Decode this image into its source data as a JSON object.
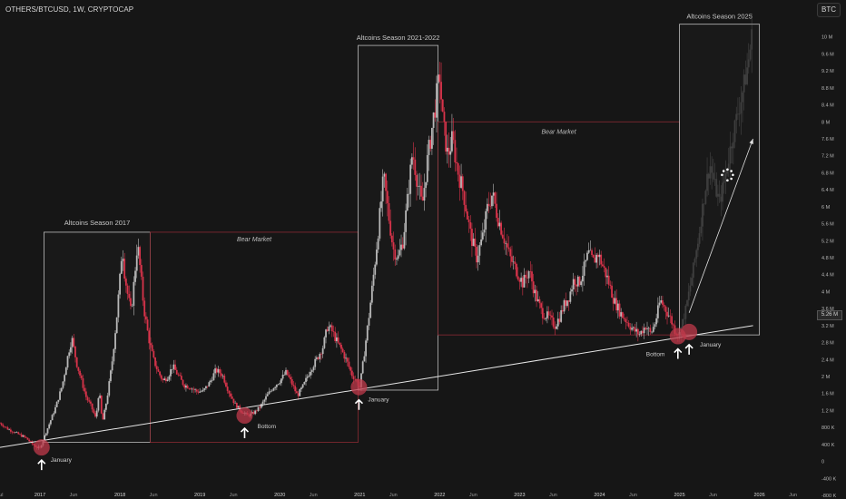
{
  "header": {
    "symbol_line": "OTHERS/BTCUSD, 1W, CRYPTOCAP"
  },
  "toolbar": {
    "currency_button": "BTC"
  },
  "price_badge": "5.26 M",
  "annotations": {
    "season_2017": "Altcoins Season 2017",
    "season_2021": "Altcoins Season 2021-2022",
    "season_2025": "Altcoins Season 2025",
    "bear_1": "Bear Market",
    "bear_2": "Bear Market",
    "label_jan_2017": "January",
    "label_bottom_2019": "Bottom",
    "label_jan_2021": "January",
    "label_bottom_2024": "Bottom",
    "label_jan_2025": "January"
  },
  "colors": {
    "background": "#161616",
    "candle_up": "#b8b8b8",
    "candle_down": "#d8334a",
    "box_white": "#bdbdbd",
    "box_red": "#8a2a33",
    "marker": "#c0394b",
    "trendline": "#e6e6e6"
  },
  "chart_data": {
    "type": "candlestick",
    "title": "OTHERS/BTCUSD, 1W, CRYPTOCAP",
    "ylim": [
      -800,
      10400
    ],
    "y_unit": "K",
    "y_tick_labels": [
      "10 M",
      "9.6 M",
      "9.2 M",
      "8.8 M",
      "8.4 M",
      "8 M",
      "7.6 M",
      "7.2 M",
      "6.8 M",
      "6.4 M",
      "6 M",
      "5.6 M",
      "5.2 M",
      "4.8 M",
      "4.4 M",
      "4 M",
      "3.6 M",
      "3.2 M",
      "2.8 M",
      "2.4 M",
      "2 M",
      "1.6 M",
      "1.2 M",
      "800 K",
      "400 K",
      "0",
      "-400 K",
      "-800 K"
    ],
    "y_tick_values": [
      10000,
      9600,
      9200,
      8800,
      8400,
      8000,
      7600,
      7200,
      6800,
      6400,
      6000,
      5600,
      5200,
      4800,
      4400,
      4000,
      3600,
      3200,
      2800,
      2400,
      2000,
      1600,
      1200,
      800,
      400,
      0,
      -400,
      -800
    ],
    "x_tick_labels": [
      "Jul",
      "2017",
      "Jun",
      "2018",
      "Jun",
      "2019",
      "Jun",
      "2020",
      "Jun",
      "2021",
      "Jun",
      "2022",
      "Jun",
      "2023",
      "Jun",
      "2024",
      "Jun",
      "2025",
      "Jun",
      "2026",
      "Jun"
    ],
    "x_tick_dates": [
      2016.5,
      2017.0,
      2017.42,
      2018.0,
      2018.42,
      2019.0,
      2019.42,
      2020.0,
      2020.42,
      2021.0,
      2021.42,
      2022.0,
      2022.42,
      2023.0,
      2023.42,
      2024.0,
      2024.42,
      2025.0,
      2025.42,
      2026.0,
      2026.42
    ],
    "price_path": [
      [
        2016.5,
        900
      ],
      [
        2016.6,
        760
      ],
      [
        2016.72,
        650
      ],
      [
        2016.82,
        560
      ],
      [
        2016.9,
        420
      ],
      [
        2016.96,
        330
      ],
      [
        2017.0,
        310
      ],
      [
        2017.05,
        560
      ],
      [
        2017.12,
        900
      ],
      [
        2017.2,
        1300
      ],
      [
        2017.28,
        1800
      ],
      [
        2017.36,
        2600
      ],
      [
        2017.4,
        2900
      ],
      [
        2017.46,
        2300
      ],
      [
        2017.52,
        1900
      ],
      [
        2017.58,
        1500
      ],
      [
        2017.64,
        1300
      ],
      [
        2017.7,
        1000
      ],
      [
        2017.74,
        1700
      ],
      [
        2017.78,
        900
      ],
      [
        2017.84,
        1500
      ],
      [
        2017.9,
        2300
      ],
      [
        2017.96,
        3400
      ],
      [
        2018.0,
        4300
      ],
      [
        2018.03,
        5100
      ],
      [
        2018.06,
        4400
      ],
      [
        2018.1,
        3900
      ],
      [
        2018.14,
        3500
      ],
      [
        2018.18,
        4300
      ],
      [
        2018.22,
        5150
      ],
      [
        2018.25,
        4600
      ],
      [
        2018.3,
        3600
      ],
      [
        2018.36,
        2900
      ],
      [
        2018.42,
        2400
      ],
      [
        2018.48,
        2100
      ],
      [
        2018.54,
        1900
      ],
      [
        2018.6,
        2000
      ],
      [
        2018.66,
        2250
      ],
      [
        2018.72,
        2050
      ],
      [
        2018.8,
        1800
      ],
      [
        2018.88,
        1750
      ],
      [
        2018.96,
        1650
      ],
      [
        2019.04,
        1650
      ],
      [
        2019.12,
        1850
      ],
      [
        2019.2,
        2150
      ],
      [
        2019.28,
        2050
      ],
      [
        2019.36,
        1650
      ],
      [
        2019.44,
        1350
      ],
      [
        2019.52,
        1180
      ],
      [
        2019.6,
        1080
      ],
      [
        2019.68,
        1150
      ],
      [
        2019.76,
        1300
      ],
      [
        2019.84,
        1550
      ],
      [
        2019.92,
        1750
      ],
      [
        2020.0,
        1900
      ],
      [
        2020.08,
        2100
      ],
      [
        2020.16,
        1800
      ],
      [
        2020.22,
        1550
      ],
      [
        2020.3,
        1800
      ],
      [
        2020.38,
        2150
      ],
      [
        2020.46,
        2400
      ],
      [
        2020.54,
        2700
      ],
      [
        2020.6,
        3200
      ],
      [
        2020.66,
        3050
      ],
      [
        2020.72,
        2800
      ],
      [
        2020.78,
        2600
      ],
      [
        2020.84,
        2350
      ],
      [
        2020.9,
        2050
      ],
      [
        2020.96,
        1900
      ],
      [
        2021.0,
        1750
      ],
      [
        2021.04,
        2300
      ],
      [
        2021.08,
        2900
      ],
      [
        2021.12,
        3500
      ],
      [
        2021.18,
        4500
      ],
      [
        2021.24,
        5600
      ],
      [
        2021.3,
        6700
      ],
      [
        2021.36,
        5800
      ],
      [
        2021.42,
        5000
      ],
      [
        2021.48,
        4800
      ],
      [
        2021.54,
        5200
      ],
      [
        2021.6,
        6200
      ],
      [
        2021.66,
        7300
      ],
      [
        2021.72,
        6600
      ],
      [
        2021.78,
        6000
      ],
      [
        2021.84,
        7000
      ],
      [
        2021.9,
        7800
      ],
      [
        2021.96,
        8600
      ],
      [
        2022.0,
        9100
      ],
      [
        2022.04,
        8000
      ],
      [
        2022.1,
        7200
      ],
      [
        2022.16,
        7600
      ],
      [
        2022.22,
        6900
      ],
      [
        2022.3,
        6300
      ],
      [
        2022.38,
        5400
      ],
      [
        2022.46,
        4800
      ],
      [
        2022.54,
        5300
      ],
      [
        2022.6,
        6000
      ],
      [
        2022.66,
        6300
      ],
      [
        2022.72,
        5800
      ],
      [
        2022.8,
        5300
      ],
      [
        2022.88,
        4800
      ],
      [
        2022.96,
        4500
      ],
      [
        2023.04,
        4200
      ],
      [
        2023.12,
        4500
      ],
      [
        2023.2,
        3900
      ],
      [
        2023.28,
        3500
      ],
      [
        2023.36,
        3400
      ],
      [
        2023.44,
        3200
      ],
      [
        2023.5,
        3400
      ],
      [
        2023.56,
        3700
      ],
      [
        2023.62,
        3900
      ],
      [
        2023.68,
        4300
      ],
      [
        2023.74,
        4200
      ],
      [
        2023.8,
        4500
      ],
      [
        2023.86,
        4900
      ],
      [
        2023.92,
        4700
      ],
      [
        2023.98,
        4900
      ],
      [
        2024.04,
        4600
      ],
      [
        2024.1,
        4300
      ],
      [
        2024.18,
        3800
      ],
      [
        2024.26,
        3500
      ],
      [
        2024.34,
        3300
      ],
      [
        2024.42,
        3100
      ],
      [
        2024.5,
        3000
      ],
      [
        2024.58,
        3200
      ],
      [
        2024.64,
        3000
      ],
      [
        2024.7,
        3300
      ],
      [
        2024.76,
        3800
      ],
      [
        2024.82,
        3600
      ],
      [
        2024.88,
        3400
      ],
      [
        2024.94,
        3100
      ],
      [
        2025.0,
        3000
      ]
    ],
    "projection_path": [
      [
        2025.0,
        3000
      ],
      [
        2025.08,
        3600
      ],
      [
        2025.16,
        4400
      ],
      [
        2025.24,
        5300
      ],
      [
        2025.32,
        6400
      ],
      [
        2025.38,
        7000
      ],
      [
        2025.44,
        6500
      ],
      [
        2025.5,
        6100
      ],
      [
        2025.56,
        6600
      ],
      [
        2025.62,
        7200
      ],
      [
        2025.68,
        7800
      ],
      [
        2025.74,
        8300
      ],
      [
        2025.8,
        8800
      ],
      [
        2025.86,
        9400
      ],
      [
        2025.92,
        10200
      ]
    ],
    "trendline": [
      [
        2016.5,
        330
      ],
      [
        2025.92,
        3200
      ]
    ],
    "arrow_projection": [
      [
        2025.12,
        3500
      ],
      [
        2025.92,
        7600
      ]
    ],
    "boxes": [
      {
        "label_key": "season_2017",
        "from": 2017.05,
        "to": 2018.38,
        "y0": 450,
        "y1": 5400,
        "style": "white"
      },
      {
        "label_key": "bear_1",
        "from": 2018.38,
        "to": 2020.98,
        "y0": 450,
        "y1": 5400,
        "style": "red"
      },
      {
        "label_key": "season_2021",
        "from": 2020.98,
        "to": 2021.98,
        "y0": 1680,
        "y1": 9800,
        "style": "white"
      },
      {
        "label_key": "bear_2",
        "from": 2021.98,
        "to": 2025.0,
        "y0": 2980,
        "y1": 8000,
        "style": "red"
      },
      {
        "label_key": "season_2025",
        "from": 2025.0,
        "to": 2026.0,
        "y0": 2980,
        "y1": 10300,
        "style": "white"
      }
    ],
    "markers": [
      {
        "x": 2017.02,
        "y": 330,
        "label_key": "label_jan_2017"
      },
      {
        "x": 2019.56,
        "y": 1080,
        "label_key": "label_bottom_2019"
      },
      {
        "x": 2020.99,
        "y": 1750,
        "label_key": "label_jan_2021"
      },
      {
        "x": 2024.98,
        "y": 2950,
        "label_key": "label_bottom_2024"
      },
      {
        "x": 2025.12,
        "y": 3050,
        "label_key": "label_jan_2025"
      }
    ]
  }
}
